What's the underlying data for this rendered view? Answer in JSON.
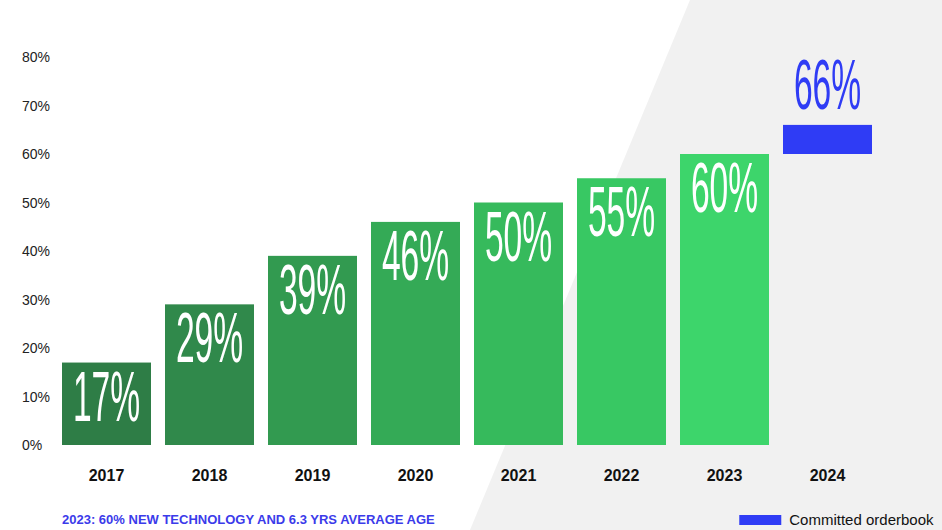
{
  "chart_data": {
    "type": "bar",
    "subtitle": "2023: 60% NEW TECHNOLOGY AND 6.3 YRS AVERAGE AGE",
    "categories": [
      "2017",
      "2018",
      "2019",
      "2020",
      "2021",
      "2022",
      "2023",
      "2024"
    ],
    "series": [
      {
        "name": null,
        "values": [
          17,
          29,
          39,
          46,
          50,
          55,
          60,
          null
        ],
        "value_labels": [
          "17%",
          "29%",
          "39%",
          "46%",
          "50%",
          "55%",
          "60%",
          null
        ],
        "colors": [
          "#2e7d46",
          "#30894b",
          "#329a50",
          "#34aa56",
          "#36ba5c",
          "#38c863",
          "#3dd56b",
          null
        ]
      },
      {
        "name": "Committed orderbook",
        "color": "#2f3cf5",
        "values": [
          null,
          null,
          null,
          null,
          null,
          null,
          null,
          66
        ],
        "value_labels": [
          null,
          null,
          null,
          null,
          null,
          null,
          null,
          "66%"
        ]
      }
    ],
    "ylim": [
      0,
      80
    ],
    "yticks": [
      {
        "value": 0,
        "label": "0%"
      },
      {
        "value": 10,
        "label": "10%"
      },
      {
        "value": 20,
        "label": "20%"
      },
      {
        "value": 30,
        "label": "30%"
      },
      {
        "value": 40,
        "label": "40%"
      },
      {
        "value": 50,
        "label": "50%"
      },
      {
        "value": 60,
        "label": "60%"
      },
      {
        "value": 70,
        "label": "70%"
      },
      {
        "value": 80,
        "label": "80%"
      }
    ],
    "grid": false,
    "data_labels": true,
    "legend": "bottom-right"
  }
}
